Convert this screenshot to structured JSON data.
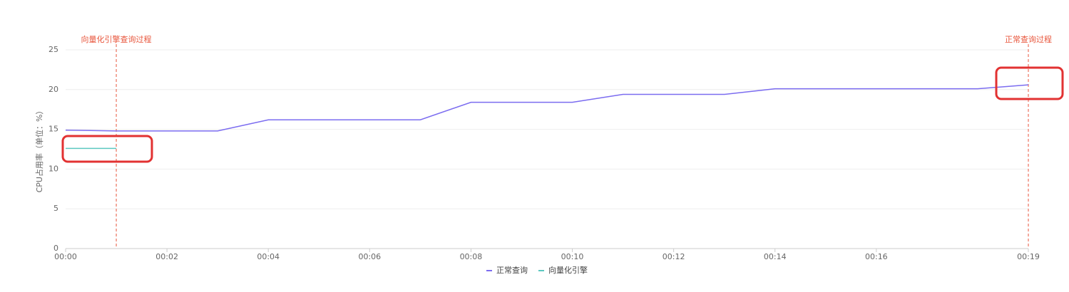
{
  "chart_data": {
    "type": "line",
    "y_label": "CPU占用率（单位：%）",
    "categories": [
      "00:00",
      null,
      "00:02",
      null,
      "00:04",
      null,
      "00:06",
      null,
      "00:08",
      null,
      "00:10",
      null,
      "00:12",
      null,
      "00:14",
      null,
      "00:16",
      null,
      null,
      "00:19"
    ],
    "series": [
      {
        "name": "正常查询",
        "color": "#7b6cf0",
        "values": [
          14.9,
          14.8,
          14.8,
          14.8,
          16.2,
          16.2,
          16.2,
          16.2,
          18.4,
          18.4,
          18.4,
          19.4,
          19.4,
          19.4,
          20.1,
          20.1,
          20.1,
          20.1,
          20.1,
          20.6
        ]
      },
      {
        "name": "向量化引擎",
        "color": "#5cc8c0",
        "values": [
          12.6,
          12.6,
          null,
          null,
          null,
          null,
          null,
          null,
          null,
          null,
          null,
          null,
          null,
          null,
          null,
          null,
          null,
          null,
          null,
          null
        ]
      }
    ],
    "annotations": [
      {
        "x": 1,
        "label": "向量化引擎查询过程",
        "color": "#e8563c"
      },
      {
        "x": 19,
        "label": "正常查询过程",
        "color": "#e8563c"
      }
    ],
    "ylim": [
      0,
      25
    ],
    "yticks": [
      0,
      5,
      10,
      15,
      20,
      25
    ],
    "grid": true,
    "legend": "bottom"
  }
}
